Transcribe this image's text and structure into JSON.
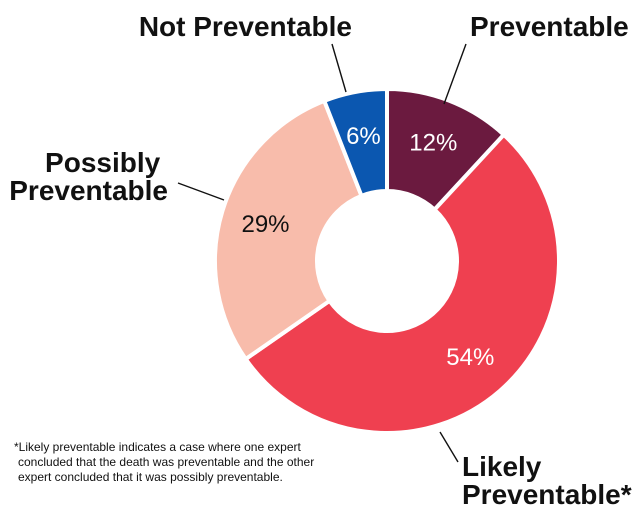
{
  "chart_data": {
    "type": "pie",
    "style": "donut",
    "series": [
      {
        "name": "Preventable",
        "value": 12,
        "label": "12%",
        "color": "#6b1a3f",
        "text_color": "#ffffff"
      },
      {
        "name": "Likely Preventable*",
        "value": 54,
        "label": "54%",
        "color": "#ef4050",
        "text_color": "#ffffff"
      },
      {
        "name": "Possibly Preventable",
        "value": 29,
        "label": "29%",
        "color": "#f8bcab",
        "text_color": "#111111"
      },
      {
        "name": "Not Preventable",
        "value": 6,
        "label": "6%",
        "color": "#0b57b0",
        "text_color": "#ffffff"
      }
    ],
    "category_labels": {
      "preventable": [
        "Preventable"
      ],
      "likely": [
        "Likely",
        "Preventable*"
      ],
      "possibly": [
        "Possibly",
        "Preventable"
      ],
      "not": [
        "Not Preventable"
      ]
    },
    "footnote": "*Likely preventable indicates a case where one expert concluded that the death was preventable and the other expert concluded that it was possibly preventable."
  }
}
